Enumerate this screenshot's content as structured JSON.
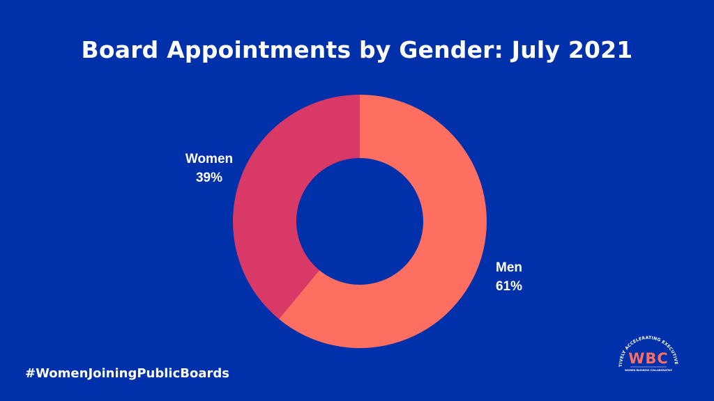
{
  "chart_data": {
    "type": "pie",
    "title": "Board Appointments by Gender: July 2021",
    "categories": [
      "Men",
      "Women"
    ],
    "values": [
      61,
      39
    ],
    "value_labels": [
      "61%",
      "39%"
    ],
    "donut": true,
    "colors": [
      "#fe6f61",
      "#d83967"
    ]
  },
  "footer": {
    "hashtag": "#WomenJoiningPublicBoards"
  },
  "logo": {
    "initials": "WBC",
    "arc_text": "COLLECTIVELY ACCELERATING EXECUTIVE WOMEN",
    "subtitle": "WOMEN BUSINESS COLLABORATIVE"
  },
  "colors": {
    "background": "#0030aa",
    "text": "#ffffff"
  }
}
